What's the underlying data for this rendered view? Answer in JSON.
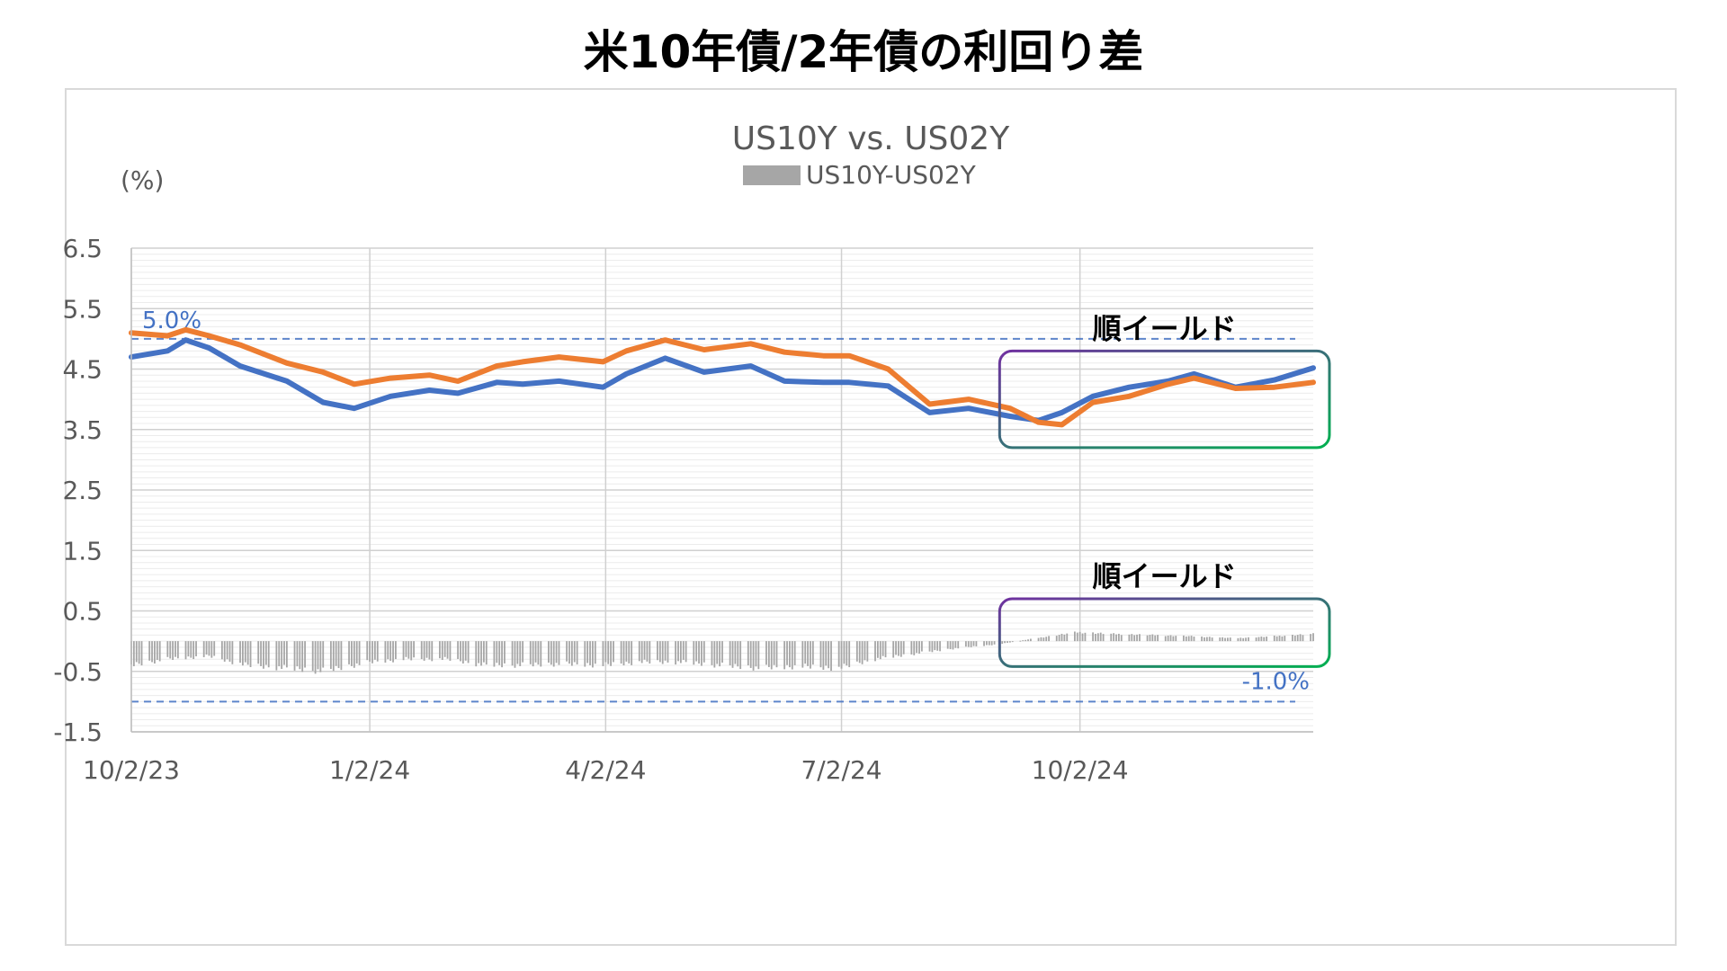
{
  "page_title": "米10年債/2年債の利回り差",
  "chart_data": {
    "type": "line",
    "title": "US10Y vs. US02Y",
    "ylabel": "(%)",
    "xlabel": "",
    "ylim": [
      -1.5,
      6.5
    ],
    "yticks": [
      "6.5",
      "5.5",
      "4.5",
      "3.5",
      "2.5",
      "1.5",
      "0.5",
      "-0.5",
      "-1.5"
    ],
    "ytick_values": [
      6.5,
      5.5,
      4.5,
      3.5,
      2.5,
      1.5,
      0.5,
      -0.5,
      -1.5
    ],
    "xlim": [
      "10/2/23",
      "12/31/24"
    ],
    "xticks": [
      "10/2/23",
      "1/2/24",
      "4/2/24",
      "7/2/24",
      "10/2/24"
    ],
    "xtick_dates": [
      "2023-10-02",
      "2024-01-02",
      "2024-04-02",
      "2024-07-02",
      "2024-10-02"
    ],
    "grid": true,
    "legend_position": "top",
    "legend_entries": [
      "US10Y-US02Y"
    ],
    "colors": {
      "us10y": "#4472c4",
      "us02y": "#ed7d31",
      "spread": "#a6a6a6",
      "reference": "#4472c4",
      "annotation_box": "#7030a0",
      "annotation_box_alt": "#00b050"
    },
    "series": [
      {
        "key": "us10y",
        "type": "line",
        "x": [
          "2023-10-02",
          "2023-10-16",
          "2023-10-23",
          "2023-11-01",
          "2023-11-13",
          "2023-12-01",
          "2023-12-15",
          "2023-12-27",
          "2024-01-10",
          "2024-01-25",
          "2024-02-05",
          "2024-02-20",
          "2024-03-01",
          "2024-03-15",
          "2024-04-01",
          "2024-04-10",
          "2024-04-25",
          "2024-05-10",
          "2024-05-28",
          "2024-06-10",
          "2024-06-25",
          "2024-07-05",
          "2024-07-20",
          "2024-08-05",
          "2024-08-20",
          "2024-09-05",
          "2024-09-16",
          "2024-09-25",
          "2024-10-07",
          "2024-10-21",
          "2024-11-05",
          "2024-11-15",
          "2024-12-01",
          "2024-12-16",
          "2024-12-31"
        ],
        "values": [
          4.7,
          4.8,
          4.98,
          4.85,
          4.55,
          4.3,
          3.95,
          3.85,
          4.05,
          4.15,
          4.1,
          4.28,
          4.25,
          4.3,
          4.2,
          4.42,
          4.68,
          4.45,
          4.55,
          4.3,
          4.28,
          4.28,
          4.22,
          3.78,
          3.85,
          3.72,
          3.65,
          3.78,
          4.05,
          4.2,
          4.3,
          4.42,
          4.2,
          4.32,
          4.52
        ]
      },
      {
        "key": "us02y",
        "type": "line",
        "x": [
          "2023-10-02",
          "2023-10-16",
          "2023-10-23",
          "2023-11-01",
          "2023-11-13",
          "2023-12-01",
          "2023-12-15",
          "2023-12-27",
          "2024-01-10",
          "2024-01-25",
          "2024-02-05",
          "2024-02-20",
          "2024-03-01",
          "2024-03-15",
          "2024-04-01",
          "2024-04-10",
          "2024-04-25",
          "2024-05-10",
          "2024-05-28",
          "2024-06-10",
          "2024-06-25",
          "2024-07-05",
          "2024-07-20",
          "2024-08-05",
          "2024-08-20",
          "2024-09-05",
          "2024-09-16",
          "2024-09-25",
          "2024-10-07",
          "2024-10-21",
          "2024-11-05",
          "2024-11-15",
          "2024-12-01",
          "2024-12-16",
          "2024-12-31"
        ],
        "values": [
          5.1,
          5.05,
          5.15,
          5.05,
          4.9,
          4.6,
          4.45,
          4.25,
          4.35,
          4.4,
          4.3,
          4.55,
          4.62,
          4.7,
          4.62,
          4.8,
          4.98,
          4.82,
          4.92,
          4.78,
          4.72,
          4.72,
          4.5,
          3.92,
          4.0,
          3.85,
          3.62,
          3.58,
          3.95,
          4.05,
          4.25,
          4.35,
          4.18,
          4.2,
          4.28
        ]
      },
      {
        "key": "spread",
        "type": "bar",
        "name": "US10Y-US02Y",
        "x": [
          "2023-10-02",
          "2023-10-16",
          "2023-11-01",
          "2023-11-15",
          "2023-12-01",
          "2023-12-15",
          "2024-01-02",
          "2024-01-16",
          "2024-02-01",
          "2024-02-15",
          "2024-03-01",
          "2024-03-15",
          "2024-04-01",
          "2024-04-15",
          "2024-05-01",
          "2024-05-15",
          "2024-06-01",
          "2024-06-15",
          "2024-07-01",
          "2024-07-15",
          "2024-08-01",
          "2024-08-15",
          "2024-09-01",
          "2024-09-15",
          "2024-10-01",
          "2024-10-15",
          "2024-11-01",
          "2024-11-15",
          "2024-12-01",
          "2024-12-15",
          "2024-12-31"
        ],
        "values": [
          -0.4,
          -0.3,
          -0.25,
          -0.4,
          -0.45,
          -0.5,
          -0.35,
          -0.3,
          -0.3,
          -0.4,
          -0.4,
          -0.38,
          -0.4,
          -0.35,
          -0.35,
          -0.4,
          -0.45,
          -0.42,
          -0.45,
          -0.3,
          -0.2,
          -0.12,
          -0.05,
          0.05,
          0.15,
          0.12,
          0.1,
          0.08,
          0.05,
          0.08,
          0.12
        ]
      }
    ],
    "reference_lines": [
      {
        "value": 5.0,
        "label": "5.0%"
      },
      {
        "value": -1.0,
        "label": "-1.0%"
      }
    ],
    "annotations": [
      {
        "label": "順イールド",
        "x_start": "2024-09-01",
        "x_end": "2024-12-31",
        "y_low": 3.2,
        "y_high": 4.8
      },
      {
        "label": "順イールド",
        "x_start": "2024-09-01",
        "x_end": "2024-12-31",
        "y_low": -0.42,
        "y_high": 0.7
      }
    ]
  }
}
